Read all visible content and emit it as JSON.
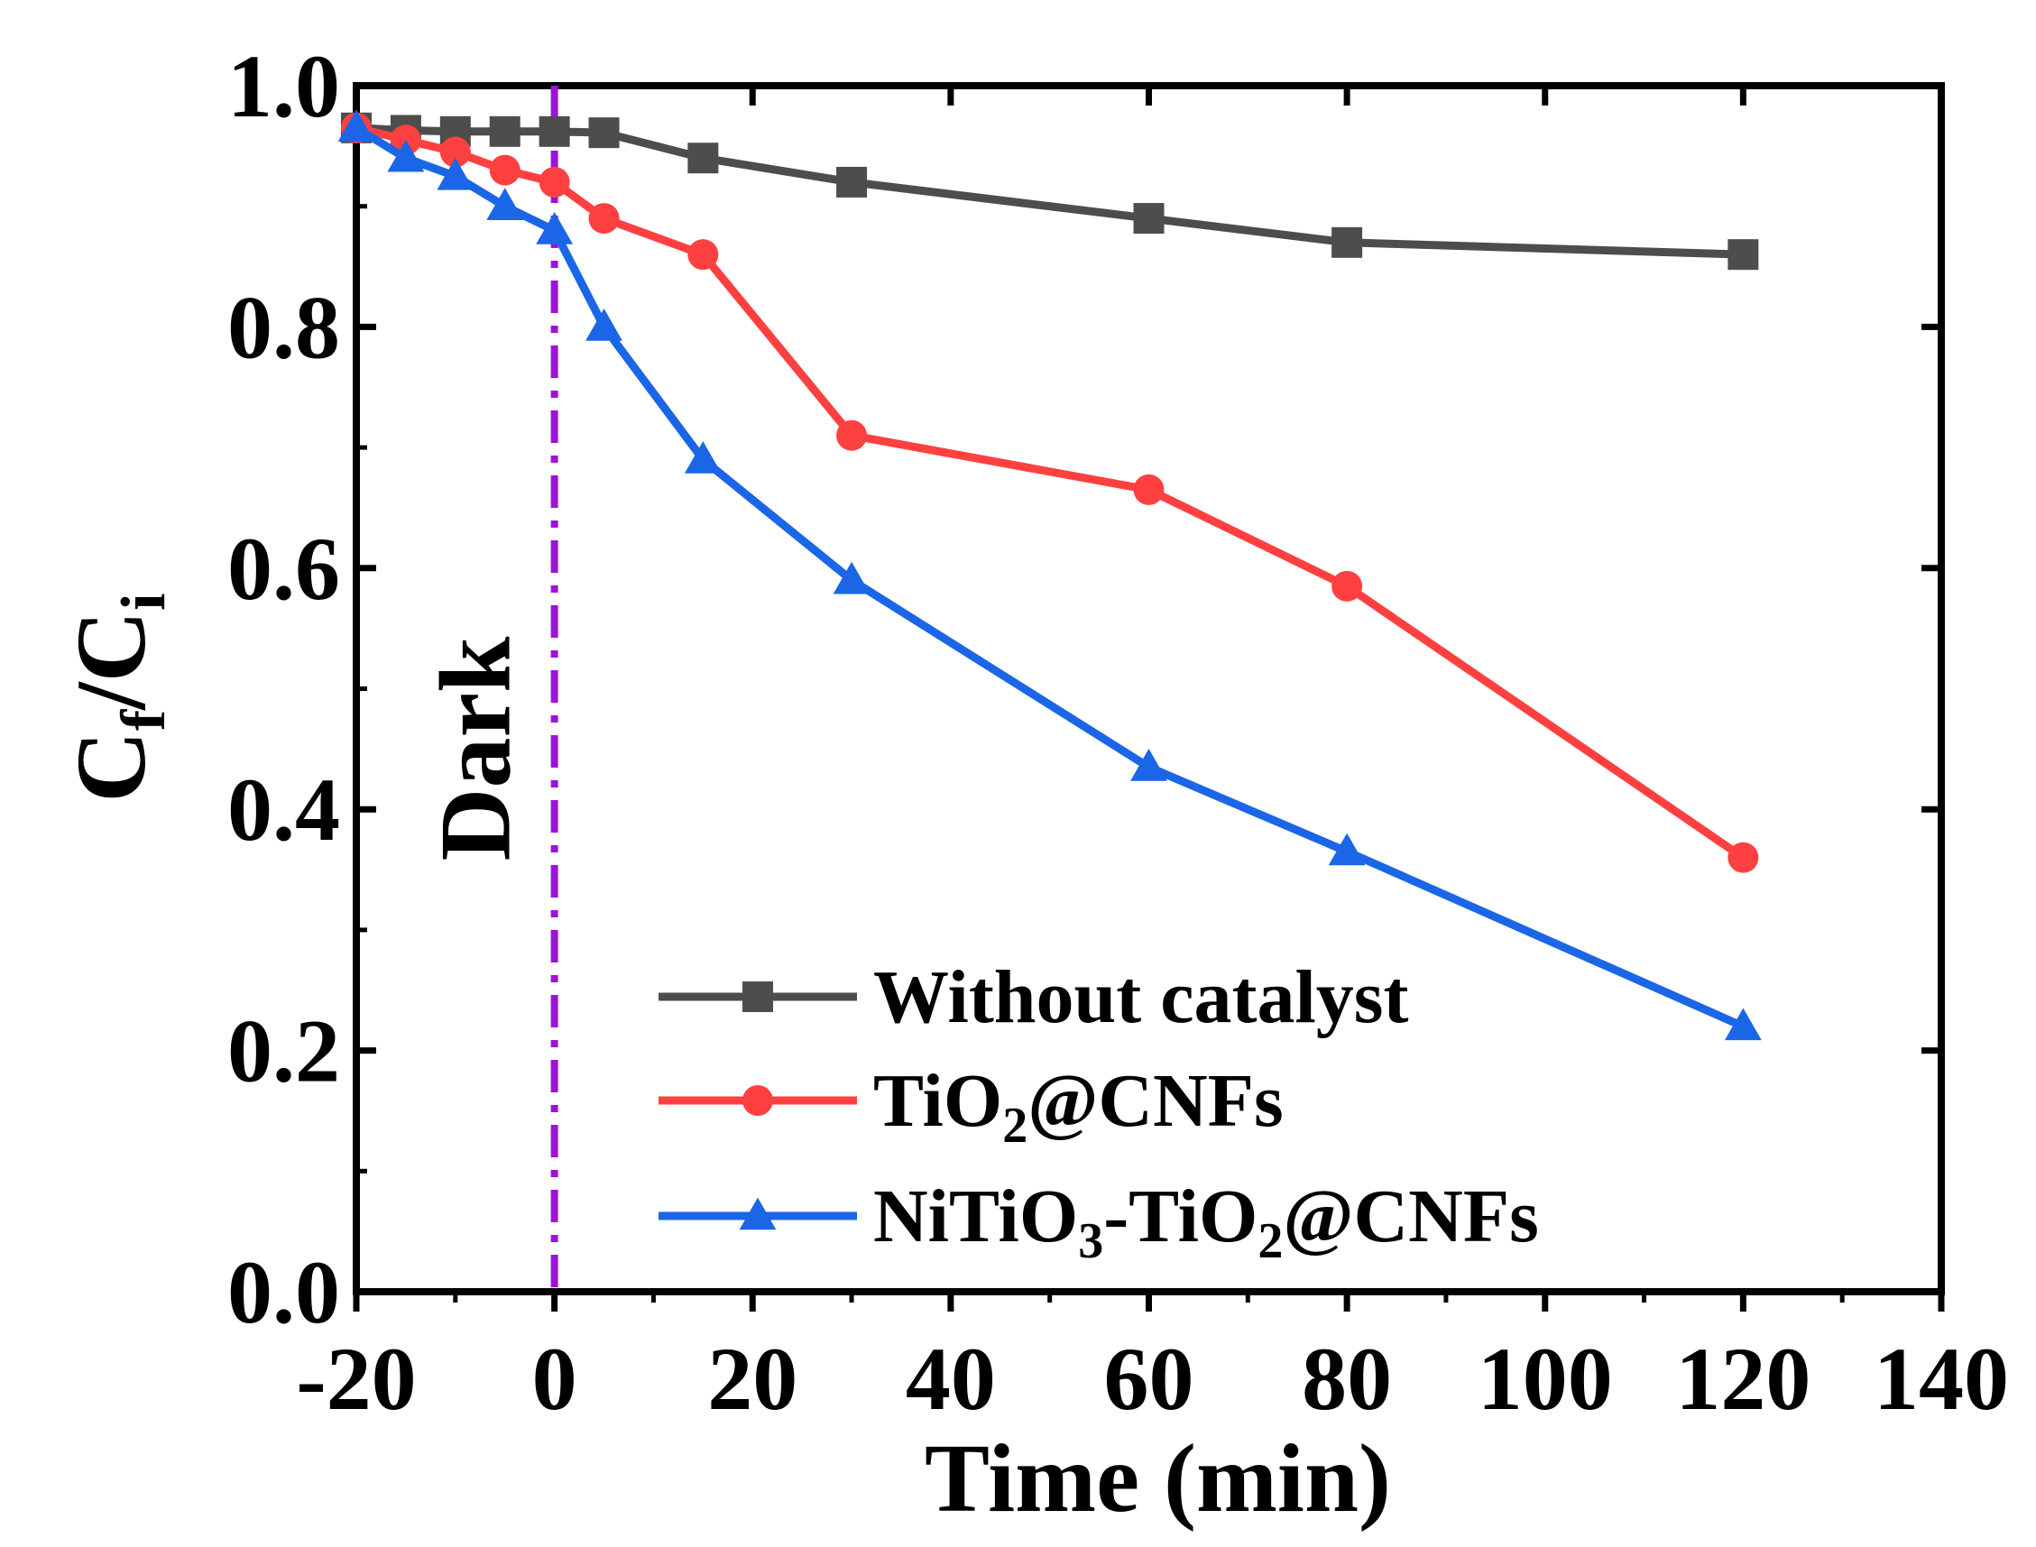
{
  "chart_data": {
    "type": "line",
    "xlabel": "Time (min)",
    "ylabel": {
      "main": "C",
      "sub1": "f",
      "slash": "/",
      "main2": "C",
      "sub2": "i"
    },
    "xlim": [
      -20,
      140
    ],
    "ylim": [
      0.0,
      1.0
    ],
    "xticks": [
      -20,
      0,
      20,
      40,
      60,
      80,
      100,
      120,
      140
    ],
    "xtick_labels": [
      "-20",
      "0",
      "20",
      "40",
      "60",
      "80",
      "100",
      "120",
      "140"
    ],
    "yticks": [
      0.0,
      0.2,
      0.4,
      0.6,
      0.8,
      1.0
    ],
    "ytick_labels": [
      "0.0",
      "0.2",
      "0.4",
      "0.6",
      "0.8",
      "1.0"
    ],
    "grid": false,
    "legend_position": "bottom-right",
    "annotation": {
      "text": "Dark",
      "x": 0
    },
    "series": [
      {
        "name": "Without catalyst",
        "name_parts": [
          {
            "t": "Without catalyst",
            "sub": false
          }
        ],
        "color": "#4d4d4d",
        "marker": "square",
        "x": [
          -20,
          -15,
          -10,
          -5,
          0,
          5,
          15,
          30,
          60,
          80,
          120
        ],
        "y": [
          0.965,
          0.963,
          0.962,
          0.962,
          0.962,
          0.961,
          0.94,
          0.92,
          0.89,
          0.87,
          0.86
        ]
      },
      {
        "name": "TiO2@CNFs",
        "name_parts": [
          {
            "t": "TiO",
            "sub": false
          },
          {
            "t": "2",
            "sub": true
          },
          {
            "t": "@CNFs",
            "sub": false
          }
        ],
        "color": "#ff4040",
        "marker": "circle",
        "x": [
          -20,
          -15,
          -10,
          -5,
          0,
          5,
          15,
          30,
          60,
          80,
          120
        ],
        "y": [
          0.965,
          0.955,
          0.945,
          0.93,
          0.92,
          0.89,
          0.86,
          0.71,
          0.665,
          0.585,
          0.36
        ]
      },
      {
        "name": "NiTiO3-TiO2@CNFs",
        "name_parts": [
          {
            "t": "NiTiO",
            "sub": false
          },
          {
            "t": "3",
            "sub": true
          },
          {
            "t": "-TiO",
            "sub": false
          },
          {
            "t": "2",
            "sub": true
          },
          {
            "t": "@CNFs",
            "sub": false
          }
        ],
        "color": "#1a66e6",
        "marker": "triangle",
        "x": [
          -20,
          -15,
          -10,
          -5,
          0,
          5,
          15,
          30,
          60,
          80,
          120
        ],
        "y": [
          0.965,
          0.94,
          0.925,
          0.9,
          0.88,
          0.8,
          0.69,
          0.59,
          0.435,
          0.365,
          0.22
        ]
      }
    ],
    "colors": {
      "axis": "#000000",
      "dark_line": "#9b14d6"
    }
  }
}
